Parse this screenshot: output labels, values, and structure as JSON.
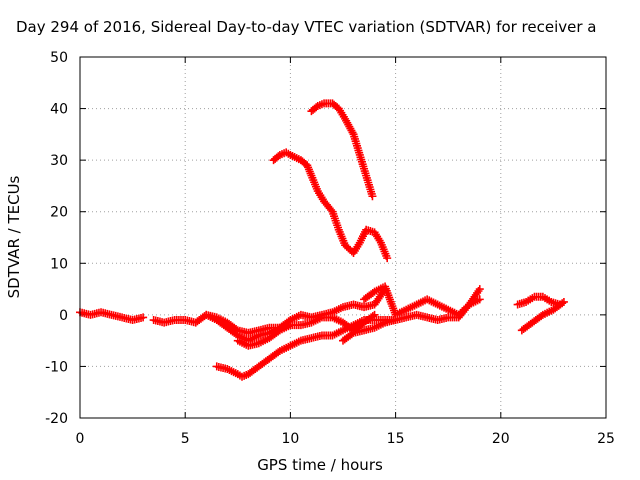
{
  "chart_data": {
    "type": "scatter",
    "title": "Day 294 of 2016, Sidereal Day-to-day VTEC variation (SDTVAR) for receiver a",
    "xlabel": "GPS time / hours",
    "ylabel": "SDTVAR / TECUs",
    "xlim": [
      0,
      25
    ],
    "ylim": [
      -20,
      50
    ],
    "xticks": [
      "0",
      "5",
      "10",
      "15",
      "20",
      "25"
    ],
    "yticks": [
      "-20",
      "-10",
      "0",
      "10",
      "20",
      "30",
      "40",
      "50"
    ],
    "grid": true,
    "legend": "none",
    "marker": "plus",
    "color": "#ff0000",
    "series": [
      {
        "x": [
          0,
          0.5,
          1,
          1.5,
          2,
          2.5,
          3
        ],
        "y": [
          0.5,
          0,
          0.5,
          0,
          -0.5,
          -1,
          -0.5
        ]
      },
      {
        "x": [
          3.5,
          4,
          4.5,
          5,
          5.5,
          6,
          6.5,
          7,
          7.5,
          8
        ],
        "y": [
          -1,
          -1.5,
          -1,
          -1,
          -1.5,
          0,
          -0.5,
          -1.5,
          -3,
          -3.5
        ]
      },
      {
        "x": [
          8,
          8.5,
          9,
          9.5,
          10
        ],
        "y": [
          -3.5,
          -3,
          -2.5,
          -2.5,
          -2
        ]
      },
      {
        "x": [
          6,
          6.5,
          7,
          7.5,
          8,
          8.5,
          9,
          9.5,
          10,
          10.5,
          11,
          11.5,
          12,
          12.5,
          13,
          13.5,
          14,
          14.5
        ],
        "y": [
          0,
          -1,
          -2.5,
          -4,
          -5,
          -4,
          -3.5,
          -2.5,
          -1,
          0,
          -0.5,
          0,
          0.5,
          1.5,
          2,
          1.5,
          2,
          5
        ]
      },
      {
        "x": [
          6.5,
          7,
          7.5,
          7.7,
          8,
          8.5,
          9,
          9.5,
          10,
          10.5,
          11,
          11.5,
          12,
          12.5,
          13,
          13.5,
          14,
          14.5,
          15
        ],
        "y": [
          -10,
          -10.5,
          -11.5,
          -12,
          -11.5,
          -10,
          -8.5,
          -7,
          -6,
          -5,
          -4.5,
          -4,
          -4,
          -3,
          -2,
          -1,
          -1,
          -1,
          -1
        ]
      },
      {
        "x": [
          7.5,
          8,
          8.5,
          9,
          9.5,
          10,
          10.5,
          11,
          11.5,
          12,
          12.5,
          13,
          13.5,
          14
        ],
        "y": [
          -5,
          -6,
          -5.5,
          -4.5,
          -3,
          -2,
          -2,
          -1.5,
          -0.5,
          -0.5,
          -1.5,
          -3,
          -1.5,
          0
        ]
      },
      {
        "x": [
          12.5,
          13,
          13.5,
          14,
          14.5,
          15,
          15.5,
          16,
          16.5,
          17,
          17.5,
          18,
          18.5,
          19
        ],
        "y": [
          -5,
          -3.5,
          -3,
          -2.5,
          -1.5,
          -1,
          -0.5,
          0,
          -0.5,
          -1,
          -0.5,
          -0.5,
          2,
          3
        ]
      },
      {
        "x": [
          13.5,
          14,
          14.5,
          15,
          15.5,
          16,
          16.5,
          17,
          17.5,
          18,
          18.5,
          19
        ],
        "y": [
          3,
          4.5,
          5.5,
          0,
          1,
          2,
          3,
          2,
          1,
          0,
          2,
          5
        ]
      },
      {
        "x": [
          9.2,
          9.5,
          9.8,
          10,
          10.5,
          10.8,
          11,
          11.3,
          11.6,
          12,
          12.3,
          12.6,
          13,
          13.3,
          13.6,
          14,
          14.3,
          14.6
        ],
        "y": [
          30,
          31,
          31.5,
          31,
          30,
          29,
          27,
          24,
          22,
          20,
          16.5,
          13.5,
          12,
          14,
          16.5,
          16,
          14,
          11
        ]
      },
      {
        "x": [
          11,
          11.3,
          11.6,
          12,
          12.3,
          12.6,
          13,
          13.3,
          13.6,
          13.9
        ],
        "y": [
          39.5,
          40.5,
          41,
          41,
          40,
          38,
          35,
          31,
          27,
          23
        ]
      },
      {
        "x": [
          21,
          21.5,
          22,
          22.5,
          23
        ],
        "y": [
          -3,
          -1.5,
          0,
          1,
          2.5
        ]
      },
      {
        "x": [
          20.8,
          21.2,
          21.6,
          22,
          22.4,
          22.8
        ],
        "y": [
          2,
          2.5,
          3.5,
          3.5,
          2.5,
          2
        ]
      }
    ]
  }
}
